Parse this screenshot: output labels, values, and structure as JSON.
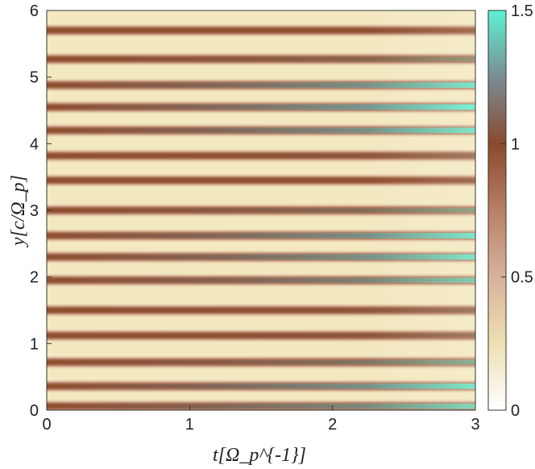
{
  "chart_data": {
    "type": "heatmap",
    "xlabel": "t[Ω_p^{-1}]",
    "ylabel": "y[c/Ω_p]",
    "xlim": [
      0,
      3
    ],
    "ylim": [
      0,
      6
    ],
    "x_ticks": [
      "0",
      "1",
      "2",
      "3"
    ],
    "y_ticks": [
      "0",
      "1",
      "2",
      "3",
      "4",
      "5",
      "6"
    ],
    "colorbar": {
      "range": [
        0,
        1.5
      ],
      "ticks": [
        "0",
        "0.5",
        "1",
        "1.5"
      ],
      "colormap": [
        {
          "value": 0.0,
          "color": "#ffffff"
        },
        {
          "value": 0.25,
          "color": "#ede0b2"
        },
        {
          "value": 0.5,
          "color": "#d8b29a"
        },
        {
          "value": 0.75,
          "color": "#b88066"
        },
        {
          "value": 1.0,
          "color": "#8a4a2c"
        },
        {
          "value": 1.25,
          "color": "#7b8c95"
        },
        {
          "value": 1.5,
          "color": "#5ef2d2"
        }
      ]
    },
    "stripes": [
      {
        "y": 0.06,
        "growth": 0.4
      },
      {
        "y": 0.36,
        "growth": 0.45
      },
      {
        "y": 0.72,
        "growth": 0.25
      },
      {
        "y": 1.12,
        "growth": 0.05
      },
      {
        "y": 1.5,
        "growth": 0.05
      },
      {
        "y": 1.95,
        "growth": 0.35
      },
      {
        "y": 2.3,
        "growth": 0.45
      },
      {
        "y": 2.62,
        "growth": 0.45
      },
      {
        "y": 3.0,
        "growth": 0.2
      },
      {
        "y": 3.45,
        "growth": 0.0
      },
      {
        "y": 3.82,
        "growth": 0.05
      },
      {
        "y": 4.2,
        "growth": 0.45
      },
      {
        "y": 4.55,
        "growth": 0.5
      },
      {
        "y": 4.88,
        "growth": 0.45
      },
      {
        "y": 5.27,
        "growth": 0.15
      },
      {
        "y": 5.7,
        "growth": 0.0
      }
    ]
  }
}
